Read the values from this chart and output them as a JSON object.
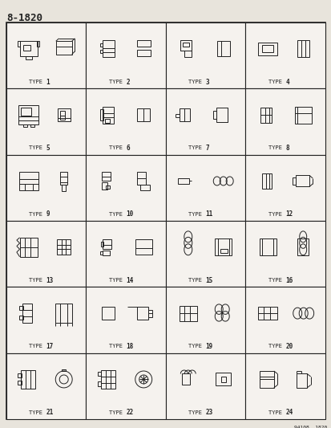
{
  "title": "8-1820",
  "subtitle": "94108  1820",
  "background_color": "#e8e4dc",
  "grid_rows": 6,
  "grid_cols": 4,
  "label_prefix": "TYPE ",
  "fig_width": 4.14,
  "fig_height": 5.33,
  "border_color": "#222222",
  "line_color": "#222222",
  "text_color": "#222222",
  "cell_bg": "#f5f2ee",
  "title_fontsize": 9,
  "label_fontsize": 5,
  "subtitle_fontsize": 4.5
}
